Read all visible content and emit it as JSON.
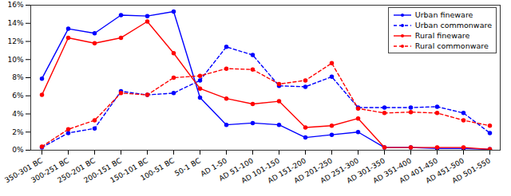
{
  "chart_data": {
    "type": "line",
    "categories": [
      "350-301 BC",
      "300-251 BC",
      "250-201 BC",
      "200-151 BC",
      "150-101 BC",
      "100-51 BC",
      "50-1 BC",
      "AD 1-50",
      "AD 51-100",
      "AD 101-150",
      "AD 151-200",
      "AD 201-250",
      "AD 251-300",
      "AD 301-350",
      "AD 351-400",
      "AD 401-450",
      "AD 451-500",
      "AD 501-550"
    ],
    "series": [
      {
        "name": "Urban fineware",
        "color": "#0000ff",
        "line_style": "solid",
        "marker": "circle",
        "values": [
          7.9,
          13.4,
          12.9,
          14.9,
          14.8,
          15.3,
          5.8,
          2.8,
          3.0,
          2.8,
          1.4,
          1.7,
          2.0,
          0.3,
          0.3,
          0.2,
          0.2,
          0.1
        ]
      },
      {
        "name": "Urban commonware",
        "color": "#0000ff",
        "line_style": "dashed",
        "marker": "circle",
        "values": [
          0.3,
          1.9,
          2.4,
          6.5,
          6.1,
          6.3,
          7.7,
          11.4,
          10.5,
          7.1,
          7.0,
          8.1,
          4.7,
          4.7,
          4.7,
          4.8,
          4.1,
          1.9
        ]
      },
      {
        "name": "Rural fineware",
        "color": "#ff0000",
        "line_style": "solid",
        "marker": "circle",
        "values": [
          6.1,
          12.4,
          11.8,
          12.4,
          14.2,
          10.7,
          6.8,
          5.7,
          5.1,
          5.4,
          2.5,
          2.7,
          3.5,
          0.3,
          0.3,
          0.3,
          0.3,
          0.1
        ]
      },
      {
        "name": "Rural commonware",
        "color": "#ff0000",
        "line_style": "dashed",
        "marker": "circle",
        "values": [
          0.4,
          2.3,
          3.3,
          6.3,
          6.1,
          8.0,
          8.2,
          9.0,
          8.9,
          7.3,
          7.7,
          9.6,
          4.6,
          4.1,
          4.2,
          4.1,
          3.3,
          2.7
        ]
      }
    ],
    "ylim": [
      0,
      16
    ],
    "yticks": [
      {
        "value": 0,
        "label": "0%"
      },
      {
        "value": 2,
        "label": "2%"
      },
      {
        "value": 4,
        "label": "4%"
      },
      {
        "value": 6,
        "label": "6%"
      },
      {
        "value": 8,
        "label": "8%"
      },
      {
        "value": 10,
        "label": "10%"
      },
      {
        "value": 12,
        "label": "12%"
      },
      {
        "value": 14,
        "label": "14%"
      },
      {
        "value": 16,
        "label": "16%"
      }
    ],
    "grid": false,
    "legend": "top-right"
  }
}
